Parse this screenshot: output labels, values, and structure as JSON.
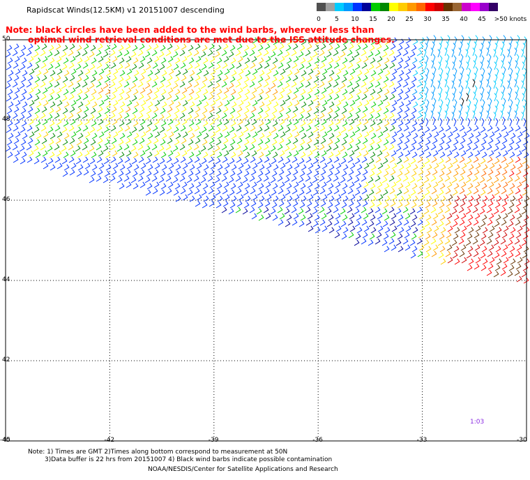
{
  "header": {
    "title": "Rapidscat Winds(12.5KM) v1 20151007 descending"
  },
  "note": {
    "line1": "Note: black circles have been added to the wind barbs, wherever less than",
    "line2": "optimal wind retrieval conditions are met due to the ISS attitude changes."
  },
  "legend": {
    "unit_label": ">50 knots",
    "ticks": [
      "0",
      "5",
      "10",
      "15",
      "20",
      "25",
      "30",
      "35",
      "40",
      "45"
    ],
    "colors": [
      "#505050",
      "#a0a0a0",
      "#00ccff",
      "#0099ff",
      "#0033ff",
      "#000099",
      "#00cc00",
      "#008800",
      "#ffff00",
      "#ffcc00",
      "#ff9900",
      "#ff6600",
      "#ff0000",
      "#cc0000",
      "#663300",
      "#996633",
      "#cc00cc",
      "#ff00ff",
      "#9900cc",
      "#330066"
    ]
  },
  "axes": {
    "y_labels": [
      "50",
      "48",
      "46",
      "44",
      "42",
      "40"
    ],
    "x_labels": [
      "-45",
      "-42",
      "-39",
      "-36",
      "-33",
      "-30"
    ],
    "lat_range": [
      40,
      50
    ],
    "lon_range": [
      -45,
      -30
    ]
  },
  "footer": {
    "note1": "Note: 1) Times are GMT 2)Times along bottom correspond to measurement at 50N",
    "note2": "3)Data buffer is 22 hrs from 20151007 4) Black wind barbs indicate possible contamination",
    "credit": "NOAA/NESDIS/Center for Satellite Applications and Research"
  },
  "pass_time": "1:03"
}
